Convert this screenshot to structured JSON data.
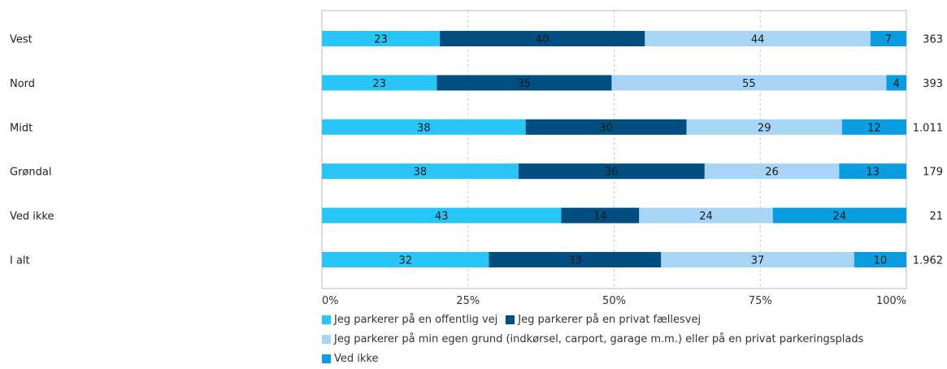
{
  "chart_data": {
    "type": "bar",
    "orientation": "horizontal",
    "stacked": "percent",
    "categories": [
      "Vest",
      "Nord",
      "Midt",
      "Grøndal",
      "Ved ikke",
      "I alt"
    ],
    "totals": [
      "363",
      "393",
      "1.011",
      "179",
      "21",
      "1.962"
    ],
    "series": [
      {
        "name": "Jeg parkerer på en offentlig vej",
        "values": [
          23,
          23,
          38,
          38,
          43,
          32
        ],
        "color": "#29c5f6"
      },
      {
        "name": "Jeg parkerer på en privat fællesvej",
        "values": [
          40,
          35,
          30,
          36,
          14,
          33
        ],
        "color": "#004f80"
      },
      {
        "name": "Jeg parkerer på min egen grund (indkørsel, carport, garage m.m.) eller på en privat parkeringsplads",
        "values": [
          44,
          55,
          29,
          26,
          24,
          37
        ],
        "color": "#a8d5f5"
      },
      {
        "name": "Ved ikke",
        "values": [
          7,
          4,
          12,
          13,
          24,
          10
        ],
        "color": "#0a9de0"
      }
    ],
    "x_ticks": [
      "0%",
      "25%",
      "50%",
      "75%",
      "100%"
    ],
    "xlim": [
      0,
      100
    ],
    "grid": true,
    "legend_position": "bottom"
  }
}
